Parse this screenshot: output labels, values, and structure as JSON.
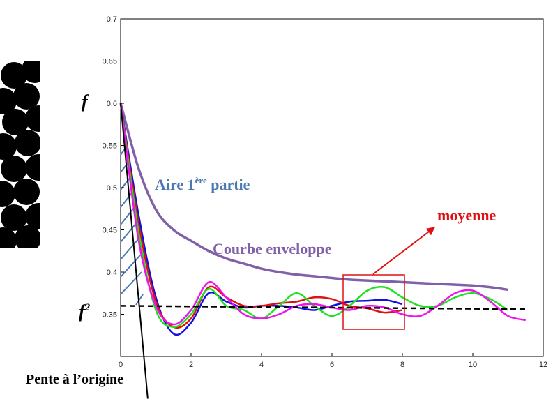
{
  "chart_data": {
    "type": "line",
    "x": [
      0,
      0.5,
      1,
      1.5,
      2,
      2.5,
      3,
      3.5,
      4,
      4.5,
      5,
      5.5,
      6,
      6.5,
      7,
      7.5,
      8,
      8.5,
      9,
      9.5,
      10,
      10.5,
      11,
      11.5
    ],
    "series": [
      {
        "color": "#8060a8",
        "values": [
          0.6,
          0.524,
          0.474,
          0.45,
          0.437,
          0.425,
          0.416,
          0.41,
          0.404,
          0.4,
          0.397,
          0.395,
          0.393,
          0.391,
          0.39,
          0.389,
          0.388,
          0.387,
          0.386,
          0.385,
          0.384,
          0.382,
          0.379,
          null
        ]
      },
      {
        "color": "#1010e0",
        "values": [
          0.6,
          0.47,
          0.37,
          0.327,
          0.34,
          0.375,
          0.365,
          0.358,
          0.36,
          0.36,
          0.358,
          0.355,
          0.36,
          0.365,
          0.366,
          0.367,
          0.362,
          null,
          null,
          null,
          null,
          null,
          null,
          null
        ]
      },
      {
        "color": "#e01010",
        "values": [
          0.6,
          0.46,
          0.365,
          0.335,
          0.345,
          0.382,
          0.37,
          0.36,
          0.36,
          0.363,
          0.365,
          0.37,
          0.368,
          0.36,
          0.357,
          0.352,
          0.355,
          null,
          null,
          null,
          null,
          null,
          null,
          null
        ]
      },
      {
        "color": "#20e020",
        "values": [
          0.6,
          0.45,
          0.355,
          0.335,
          0.35,
          0.38,
          0.36,
          0.355,
          0.345,
          0.36,
          0.375,
          0.36,
          0.348,
          0.36,
          0.378,
          0.382,
          0.37,
          0.36,
          0.36,
          0.37,
          0.375,
          0.368,
          0.355,
          null
        ]
      },
      {
        "color": "#f010f0",
        "values": [
          0.6,
          0.44,
          0.36,
          0.338,
          0.355,
          0.388,
          0.37,
          0.35,
          0.345,
          0.35,
          0.36,
          0.362,
          0.358,
          0.355,
          0.36,
          0.358,
          0.35,
          0.348,
          0.36,
          0.375,
          0.378,
          0.365,
          0.348,
          0.343
        ]
      }
    ],
    "mean_line": {
      "x": [
        0,
        11.5
      ],
      "values": [
        0.36,
        0.356
      ],
      "color": "#000000"
    },
    "tangent": {
      "x": [
        0,
        0.77
      ],
      "values": [
        0.6,
        0.25
      ],
      "color": "#000000"
    },
    "xlim": [
      0,
      12
    ],
    "xticks": [
      0,
      2,
      4,
      6,
      8,
      10,
      12
    ],
    "ylim": [
      0.3,
      0.7
    ],
    "yticks": [
      0.35,
      0.4,
      0.45,
      0.5,
      0.55,
      0.6,
      0.65,
      0.7
    ],
    "annotations": {
      "f": "f",
      "f2": {
        "base": "f",
        "sup": "2"
      },
      "aire": {
        "before": "Aire 1",
        "sup": "ère",
        "after": " partie"
      },
      "enveloppe": "Courbe enveloppe",
      "moyenne": "moyenne",
      "pente": "Pente à l’origine"
    }
  }
}
